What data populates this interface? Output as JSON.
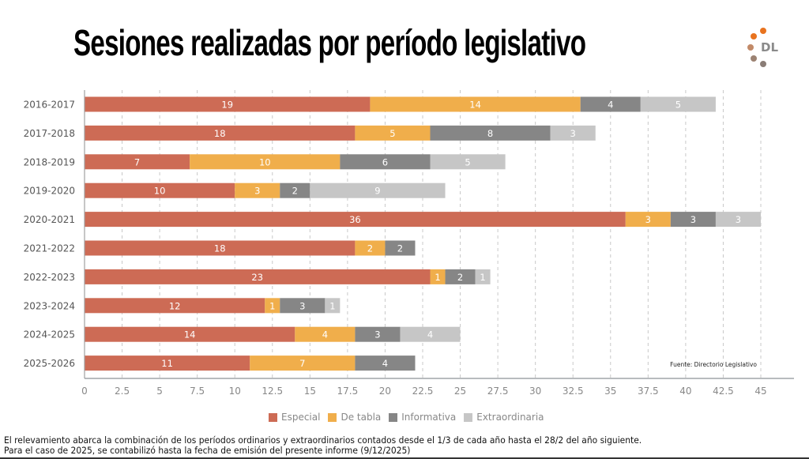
{
  "title": "Sesiones realizadas por período legislativo",
  "logo": {
    "text": "DL",
    "icon": "dl-dots-logo",
    "dot_colors": [
      "#e8731f",
      "#e8731f",
      "#c28a68",
      "#9c8272",
      "#8a7d76"
    ]
  },
  "source": "Fuente: Directorio Legislativo",
  "footer": {
    "line1": "El relevamiento abarca la combinación de los períodos ordinarios y extraordinarios contados desde el 1/3 de cada año hasta el 28/2 del año siguiente.",
    "line2": "Para el caso de 2025, se contabilizó hasta la fecha de emisión del presente informe (9/12/2025)"
  },
  "chart_data": {
    "type": "bar",
    "orientation": "horizontal",
    "stacked": true,
    "title": "Sesiones realizadas por período legislativo",
    "xlabel": "",
    "ylabel": "",
    "xlim": [
      0,
      45
    ],
    "xticks": [
      0,
      2.5,
      5,
      7.5,
      10,
      12.5,
      15,
      17.5,
      20,
      22.5,
      25,
      27.5,
      30,
      32.5,
      35,
      37.5,
      40,
      42.5,
      45
    ],
    "xtick_labels": [
      "0",
      "2.5",
      "5",
      "7.5",
      "10",
      "12.5",
      "15",
      "17.5",
      "20",
      "22.5",
      "25",
      "27.5",
      "30",
      "32.5",
      "35",
      "37.5",
      "40",
      "42.5",
      "45"
    ],
    "grid": "vertical-dashed",
    "legend_position": "bottom-center",
    "categories": [
      "2016-2017",
      "2017-2018",
      "2018-2019",
      "2019-2020",
      "2020-2021",
      "2021-2022",
      "2022-2023",
      "2023-2024",
      "2024-2025",
      "2025-2026"
    ],
    "series": [
      {
        "name": "Especial",
        "color": "#cd6b55",
        "values": [
          19,
          18,
          7,
          10,
          36,
          18,
          23,
          12,
          14,
          11
        ]
      },
      {
        "name": "De tabla",
        "color": "#f0ae4b",
        "values": [
          14,
          5,
          10,
          3,
          3,
          2,
          1,
          1,
          4,
          7
        ]
      },
      {
        "name": "Informativa",
        "color": "#868686",
        "values": [
          4,
          8,
          6,
          2,
          3,
          2,
          2,
          3,
          3,
          4
        ]
      },
      {
        "name": "Extraordinaria",
        "color": "#c6c6c6",
        "values": [
          5,
          3,
          5,
          9,
          3,
          0,
          1,
          1,
          4,
          0
        ]
      }
    ],
    "annotation": "Fuente: Directorio Legislativo"
  }
}
